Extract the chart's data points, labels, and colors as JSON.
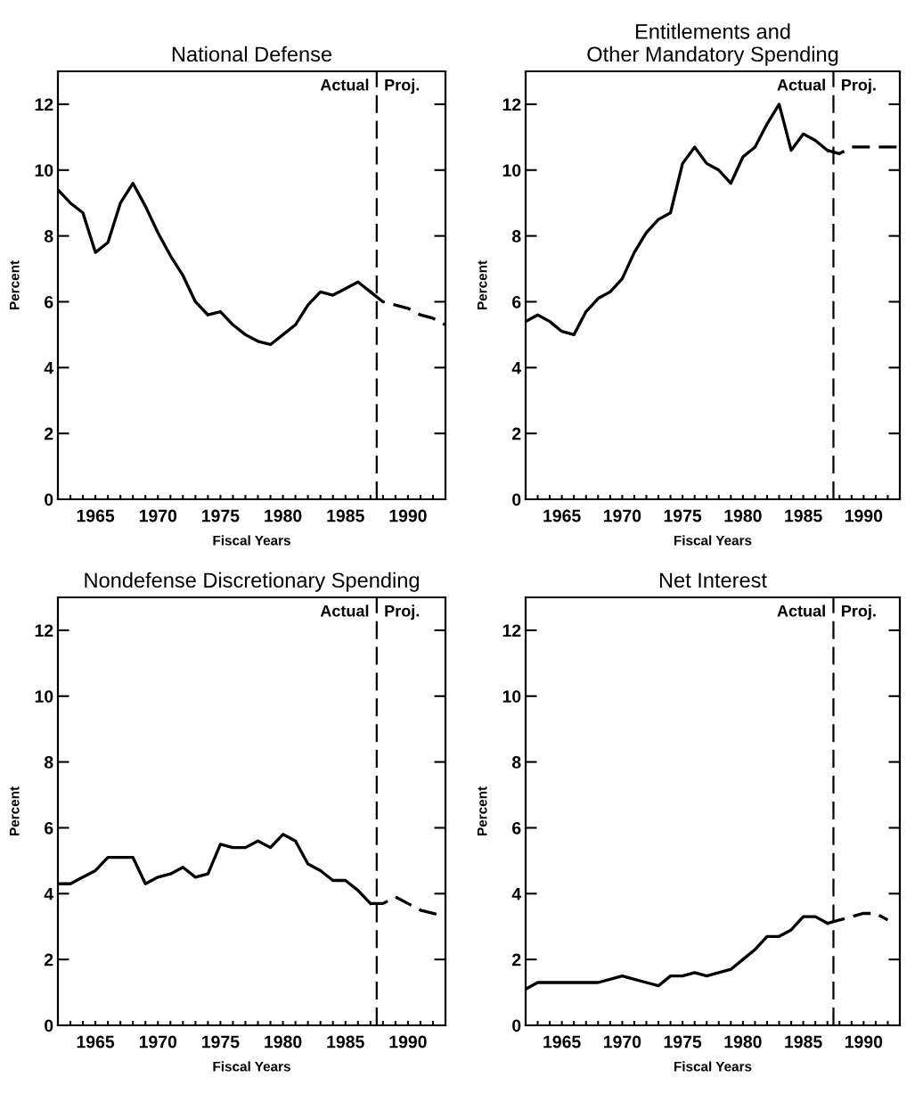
{
  "chart_data": [
    {
      "type": "line",
      "title": "National Defense",
      "xlabel": "Fiscal Years",
      "ylabel": "Percent",
      "xlim": [
        1962,
        1993
      ],
      "ylim": [
        0,
        13
      ],
      "xticks": [
        {
          "value": 1962,
          "label": null
        },
        {
          "value": 1963,
          "label": null
        },
        {
          "value": 1964,
          "label": null
        },
        1965,
        {
          "value": 1966,
          "label": null
        },
        {
          "value": 1967,
          "label": null
        },
        {
          "value": 1968,
          "label": null
        },
        {
          "value": 1969,
          "label": null
        },
        1970,
        {
          "value": 1971,
          "label": null
        },
        {
          "value": 1972,
          "label": null
        },
        {
          "value": 1973,
          "label": null
        },
        {
          "value": 1974,
          "label": null
        },
        1975,
        {
          "value": 1976,
          "label": null
        },
        {
          "value": 1977,
          "label": null
        },
        {
          "value": 1978,
          "label": null
        },
        {
          "value": 1979,
          "label": null
        },
        1980,
        {
          "value": 1981,
          "label": null
        },
        {
          "value": 1982,
          "label": null
        },
        {
          "value": 1983,
          "label": null
        },
        {
          "value": 1984,
          "label": null
        },
        1985,
        {
          "value": 1986,
          "label": null
        },
        {
          "value": 1987,
          "label": null
        },
        {
          "value": 1988,
          "label": null
        },
        {
          "value": 1989,
          "label": null
        },
        1990,
        {
          "value": 1991,
          "label": null
        },
        {
          "value": 1992,
          "label": null
        }
      ],
      "yticks": [
        0,
        2,
        4,
        6,
        8,
        10,
        12
      ],
      "grid": false,
      "legend": false,
      "marker": "none",
      "series": [
        {
          "color": "#000000",
          "line_style": "solid",
          "x": [
            1962,
            1963,
            1964,
            1965,
            1966,
            1967,
            1968,
            1969,
            1970,
            1971,
            1972,
            1973,
            1974,
            1975,
            1976,
            1977,
            1978,
            1979,
            1980,
            1981,
            1982,
            1983,
            1984,
            1985,
            1986,
            1987
          ],
          "values": [
            9.4,
            9.0,
            8.7,
            7.5,
            7.8,
            9.0,
            9.6,
            8.9,
            8.1,
            7.4,
            6.8,
            6.0,
            5.6,
            5.7,
            5.3,
            5.0,
            4.8,
            4.7,
            5.0,
            5.3,
            5.9,
            6.3,
            6.2,
            6.4,
            6.6,
            6.3
          ]
        },
        {
          "color": "#000000",
          "line_style": "dashed",
          "x": [
            1987,
            1988,
            1989,
            1990,
            1991,
            1992,
            1993
          ],
          "values": [
            6.3,
            6.0,
            5.9,
            5.8,
            5.6,
            5.5,
            5.3
          ]
        }
      ],
      "ref_lines": [
        {
          "axis": "x",
          "value": 1987.5,
          "color": "#000000",
          "line_style": "dashed"
        }
      ],
      "annotations": [
        "Actual",
        "Proj."
      ]
    },
    {
      "type": "line",
      "title": "Entitlements and\nOther Mandatory Spending",
      "xlabel": "Fiscal Years",
      "ylabel": "Percent",
      "xlim": [
        1962,
        1993
      ],
      "ylim": [
        0,
        13
      ],
      "xticks": [
        {
          "value": 1962,
          "label": null
        },
        {
          "value": 1963,
          "label": null
        },
        {
          "value": 1964,
          "label": null
        },
        1965,
        {
          "value": 1966,
          "label": null
        },
        {
          "value": 1967,
          "label": null
        },
        {
          "value": 1968,
          "label": null
        },
        {
          "value": 1969,
          "label": null
        },
        1970,
        {
          "value": 1971,
          "label": null
        },
        {
          "value": 1972,
          "label": null
        },
        {
          "value": 1973,
          "label": null
        },
        {
          "value": 1974,
          "label": null
        },
        1975,
        {
          "value": 1976,
          "label": null
        },
        {
          "value": 1977,
          "label": null
        },
        {
          "value": 1978,
          "label": null
        },
        {
          "value": 1979,
          "label": null
        },
        1980,
        {
          "value": 1981,
          "label": null
        },
        {
          "value": 1982,
          "label": null
        },
        {
          "value": 1983,
          "label": null
        },
        {
          "value": 1984,
          "label": null
        },
        1985,
        {
          "value": 1986,
          "label": null
        },
        {
          "value": 1987,
          "label": null
        },
        {
          "value": 1988,
          "label": null
        },
        {
          "value": 1989,
          "label": null
        },
        1990,
        {
          "value": 1991,
          "label": null
        },
        {
          "value": 1992,
          "label": null
        }
      ],
      "yticks": [
        0,
        2,
        4,
        6,
        8,
        10,
        12
      ],
      "grid": false,
      "legend": false,
      "marker": "none",
      "series": [
        {
          "color": "#000000",
          "line_style": "solid",
          "x": [
            1962,
            1963,
            1964,
            1965,
            1966,
            1967,
            1968,
            1969,
            1970,
            1971,
            1972,
            1973,
            1974,
            1975,
            1976,
            1977,
            1978,
            1979,
            1980,
            1981,
            1982,
            1983,
            1984,
            1985,
            1986,
            1987
          ],
          "values": [
            5.4,
            5.6,
            5.4,
            5.1,
            5.0,
            5.7,
            6.1,
            6.3,
            6.7,
            7.5,
            8.1,
            8.5,
            8.7,
            10.2,
            10.7,
            10.2,
            10.0,
            9.6,
            10.4,
            10.7,
            11.4,
            12.0,
            10.6,
            11.1,
            10.9,
            10.6
          ]
        },
        {
          "color": "#000000",
          "line_style": "dashed",
          "x": [
            1987,
            1988,
            1989,
            1990,
            1991,
            1992,
            1993
          ],
          "values": [
            10.6,
            10.5,
            10.7,
            10.7,
            10.7,
            10.7,
            10.7
          ]
        }
      ],
      "ref_lines": [
        {
          "axis": "x",
          "value": 1987.5,
          "color": "#000000",
          "line_style": "dashed"
        }
      ],
      "annotations": [
        "Actual",
        "Proj."
      ]
    },
    {
      "type": "line",
      "title": "Nondefense Discretionary Spending",
      "xlabel": "Fiscal Years",
      "ylabel": "Percent",
      "xlim": [
        1962,
        1993
      ],
      "ylim": [
        0,
        13
      ],
      "xticks": [
        {
          "value": 1962,
          "label": null
        },
        {
          "value": 1963,
          "label": null
        },
        {
          "value": 1964,
          "label": null
        },
        1965,
        {
          "value": 1966,
          "label": null
        },
        {
          "value": 1967,
          "label": null
        },
        {
          "value": 1968,
          "label": null
        },
        {
          "value": 1969,
          "label": null
        },
        1970,
        {
          "value": 1971,
          "label": null
        },
        {
          "value": 1972,
          "label": null
        },
        {
          "value": 1973,
          "label": null
        },
        {
          "value": 1974,
          "label": null
        },
        1975,
        {
          "value": 1976,
          "label": null
        },
        {
          "value": 1977,
          "label": null
        },
        {
          "value": 1978,
          "label": null
        },
        {
          "value": 1979,
          "label": null
        },
        1980,
        {
          "value": 1981,
          "label": null
        },
        {
          "value": 1982,
          "label": null
        },
        {
          "value": 1983,
          "label": null
        },
        {
          "value": 1984,
          "label": null
        },
        1985,
        {
          "value": 1986,
          "label": null
        },
        {
          "value": 1987,
          "label": null
        },
        {
          "value": 1988,
          "label": null
        },
        {
          "value": 1989,
          "label": null
        },
        1990,
        {
          "value": 1991,
          "label": null
        },
        {
          "value": 1992,
          "label": null
        }
      ],
      "yticks": [
        0,
        2,
        4,
        6,
        8,
        10,
        12
      ],
      "grid": false,
      "legend": false,
      "marker": "none",
      "series": [
        {
          "color": "#000000",
          "line_style": "solid",
          "x": [
            1962,
            1963,
            1964,
            1965,
            1966,
            1967,
            1968,
            1969,
            1970,
            1971,
            1972,
            1973,
            1974,
            1975,
            1976,
            1977,
            1978,
            1979,
            1980,
            1981,
            1982,
            1983,
            1984,
            1985,
            1986,
            1987
          ],
          "values": [
            4.3,
            4.3,
            4.5,
            4.7,
            5.1,
            5.1,
            5.1,
            4.3,
            4.5,
            4.6,
            4.8,
            4.5,
            4.6,
            5.5,
            5.4,
            5.4,
            5.6,
            5.4,
            5.8,
            5.6,
            4.9,
            4.7,
            4.4,
            4.4,
            4.1,
            3.7
          ]
        },
        {
          "color": "#000000",
          "line_style": "dashed",
          "x": [
            1987,
            1988,
            1989,
            1990,
            1991,
            1992,
            1993
          ],
          "values": [
            3.7,
            3.7,
            3.9,
            3.7,
            3.5,
            3.4,
            3.3
          ]
        }
      ],
      "ref_lines": [
        {
          "axis": "x",
          "value": 1987.5,
          "color": "#000000",
          "line_style": "dashed"
        }
      ],
      "annotations": [
        "Actual",
        "Proj."
      ]
    },
    {
      "type": "line",
      "title": "Net Interest",
      "xlabel": "Fiscal Years",
      "ylabel": "Percent",
      "xlim": [
        1962,
        1993
      ],
      "ylim": [
        0,
        13
      ],
      "xticks": [
        {
          "value": 1962,
          "label": null
        },
        {
          "value": 1963,
          "label": null
        },
        {
          "value": 1964,
          "label": null
        },
        1965,
        {
          "value": 1966,
          "label": null
        },
        {
          "value": 1967,
          "label": null
        },
        {
          "value": 1968,
          "label": null
        },
        {
          "value": 1969,
          "label": null
        },
        1970,
        {
          "value": 1971,
          "label": null
        },
        {
          "value": 1972,
          "label": null
        },
        {
          "value": 1973,
          "label": null
        },
        {
          "value": 1974,
          "label": null
        },
        1975,
        {
          "value": 1976,
          "label": null
        },
        {
          "value": 1977,
          "label": null
        },
        {
          "value": 1978,
          "label": null
        },
        {
          "value": 1979,
          "label": null
        },
        1980,
        {
          "value": 1981,
          "label": null
        },
        {
          "value": 1982,
          "label": null
        },
        {
          "value": 1983,
          "label": null
        },
        {
          "value": 1984,
          "label": null
        },
        1985,
        {
          "value": 1986,
          "label": null
        },
        {
          "value": 1987,
          "label": null
        },
        {
          "value": 1988,
          "label": null
        },
        {
          "value": 1989,
          "label": null
        },
        1990,
        {
          "value": 1991,
          "label": null
        },
        {
          "value": 1992,
          "label": null
        }
      ],
      "yticks": [
        0,
        2,
        4,
        6,
        8,
        10,
        12
      ],
      "grid": false,
      "legend": false,
      "marker": "none",
      "series": [
        {
          "color": "#000000",
          "line_style": "solid",
          "x": [
            1962,
            1963,
            1964,
            1965,
            1966,
            1967,
            1968,
            1969,
            1970,
            1971,
            1972,
            1973,
            1974,
            1975,
            1976,
            1977,
            1978,
            1979,
            1980,
            1981,
            1982,
            1983,
            1984,
            1985,
            1986,
            1987
          ],
          "values": [
            1.1,
            1.3,
            1.3,
            1.3,
            1.3,
            1.3,
            1.3,
            1.4,
            1.5,
            1.4,
            1.3,
            1.2,
            1.5,
            1.5,
            1.6,
            1.5,
            1.6,
            1.7,
            2.0,
            2.3,
            2.7,
            2.7,
            2.9,
            3.3,
            3.3,
            3.1
          ]
        },
        {
          "color": "#000000",
          "line_style": "dashed",
          "x": [
            1987,
            1988,
            1989,
            1990,
            1991,
            1992
          ],
          "values": [
            3.1,
            3.2,
            3.3,
            3.4,
            3.4,
            3.2
          ]
        }
      ],
      "ref_lines": [
        {
          "axis": "x",
          "value": 1987.5,
          "color": "#000000",
          "line_style": "dashed"
        }
      ],
      "annotations": [
        "Actual",
        "Proj."
      ]
    }
  ]
}
